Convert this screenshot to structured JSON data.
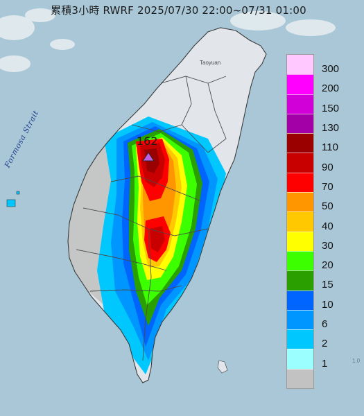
{
  "title": "累積3小時 RWRF 2025/07/30 22:00~07/31 01:00",
  "labels": {
    "strait": "Formosa Strait",
    "city": "Taoyuan",
    "edge": "1.0"
  },
  "peak": {
    "value": "162",
    "marker_color": "#c060e0"
  },
  "colors": {
    "sea": "#a9c7d6",
    "land": "#e2e6ea",
    "outline": "#3a3a3a"
  },
  "legend": {
    "items": [
      {
        "label": "300",
        "color": "#ffc8ff"
      },
      {
        "label": "200",
        "color": "#ff00ff"
      },
      {
        "label": "150",
        "color": "#d200d8"
      },
      {
        "label": "130",
        "color": "#a300a8"
      },
      {
        "label": "110",
        "color": "#9a0000"
      },
      {
        "label": "90",
        "color": "#c80000"
      },
      {
        "label": "70",
        "color": "#ff0000"
      },
      {
        "label": "50",
        "color": "#ff9600"
      },
      {
        "label": "40",
        "color": "#ffc800"
      },
      {
        "label": "30",
        "color": "#ffff00"
      },
      {
        "label": "20",
        "color": "#3cff00"
      },
      {
        "label": "15",
        "color": "#2aa000"
      },
      {
        "label": "10",
        "color": "#0064ff"
      },
      {
        "label": "6",
        "color": "#0096ff"
      },
      {
        "label": "2",
        "color": "#00c8ff"
      },
      {
        "label": "1",
        "color": "#9bffff"
      },
      {
        "label": "",
        "color": "#c2c2c2"
      }
    ]
  }
}
